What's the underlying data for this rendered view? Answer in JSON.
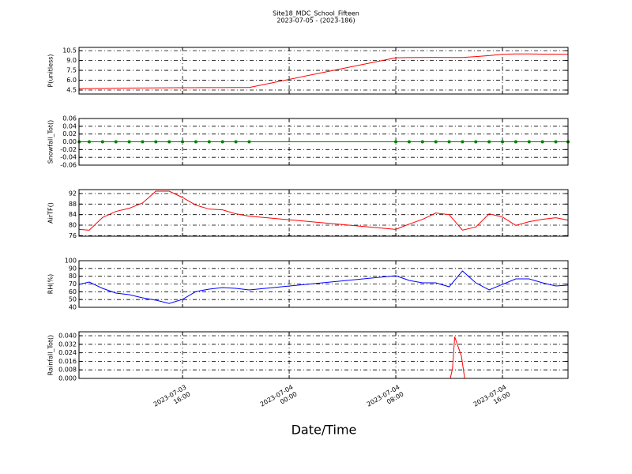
{
  "figure": {
    "title": "Site18_MDC_School_Fifteen",
    "subtitle": "2023-07-05 - (2023-186)",
    "xlabel": "Date/Time"
  },
  "chart_data": [
    {
      "type": "line",
      "ylabel": "P(unitless)",
      "color": "#ff0000",
      "grid": true,
      "x": [
        "2023-07-03 08:15",
        "2023-07-03 09:00",
        "2023-07-03 10:00",
        "2023-07-03 11:00",
        "2023-07-03 12:00",
        "2023-07-03 13:00",
        "2023-07-03 14:00",
        "2023-07-03 15:00",
        "2023-07-03 16:00",
        "2023-07-03 17:00",
        "2023-07-03 18:00",
        "2023-07-03 19:00",
        "2023-07-03 20:00",
        "2023-07-03 21:00",
        "2023-07-04 08:00",
        "2023-07-04 09:00",
        "2023-07-04 10:00",
        "2023-07-04 11:00",
        "2023-07-04 12:00",
        "2023-07-04 13:00",
        "2023-07-04 14:00",
        "2023-07-04 15:00",
        "2023-07-04 16:00",
        "2023-07-04 17:00",
        "2023-07-04 18:00",
        "2023-07-04 19:00",
        "2023-07-04 20:00",
        "2023-07-04 20:55"
      ],
      "values": [
        4.72,
        4.73,
        4.75,
        4.77,
        4.8,
        4.82,
        4.84,
        4.85,
        4.86,
        4.87,
        4.88,
        4.88,
        4.89,
        4.9,
        9.42,
        9.45,
        9.47,
        9.48,
        9.47,
        9.46,
        9.6,
        9.75,
        9.95,
        10.0,
        10.0,
        9.98,
        9.97,
        9.95
      ],
      "xlim": [
        "2023-07-03 08:14",
        "2023-07-04 20:55"
      ],
      "xticks": [
        "2023-07-03 16:00",
        "2023-07-04 00:00",
        "2023-07-04 08:00",
        "2023-07-04 16:00"
      ],
      "ylim": [
        3.9,
        11.0
      ],
      "yticks": [
        4.5,
        {
          "value": 6,
          "label": "6.0"
        },
        7.5,
        {
          "value": 9,
          "label": "9.0"
        },
        10.5
      ]
    },
    {
      "type": "line",
      "ylabel": "Snowfall_Tot()",
      "color": "#008000",
      "marker": "o",
      "grid": true,
      "x": [
        "2023-07-03 08:15",
        "2023-07-03 09:00",
        "2023-07-03 10:00",
        "2023-07-03 11:00",
        "2023-07-03 12:00",
        "2023-07-03 13:00",
        "2023-07-03 14:00",
        "2023-07-03 15:00",
        "2023-07-03 16:00",
        "2023-07-03 17:00",
        "2023-07-03 18:00",
        "2023-07-03 19:00",
        "2023-07-03 20:00",
        "2023-07-03 21:00",
        "2023-07-04 08:00",
        "2023-07-04 09:00",
        "2023-07-04 10:00",
        "2023-07-04 11:00",
        "2023-07-04 12:00",
        "2023-07-04 13:00",
        "2023-07-04 14:00",
        "2023-07-04 15:00",
        "2023-07-04 16:00",
        "2023-07-04 17:00",
        "2023-07-04 18:00",
        "2023-07-04 19:00",
        "2023-07-04 20:00",
        "2023-07-04 20:55"
      ],
      "values": [
        0,
        0,
        0,
        0,
        0,
        0,
        0,
        0,
        0,
        0,
        0,
        0,
        0,
        0,
        0,
        0,
        0,
        0,
        0,
        0,
        0,
        0,
        0,
        0,
        0,
        0,
        0,
        0
      ],
      "xlim": [
        "2023-07-03 08:14",
        "2023-07-04 20:55"
      ],
      "xticks": [
        "2023-07-03 16:00",
        "2023-07-04 00:00",
        "2023-07-04 08:00",
        "2023-07-04 16:00"
      ],
      "ylim": [
        -0.06,
        0.06
      ],
      "yticks": [
        -0.06,
        -0.04,
        -0.02,
        {
          "value": 0,
          "label": "0.00"
        },
        0.02,
        0.04,
        0.06
      ]
    },
    {
      "type": "line",
      "ylabel": "AirTF()",
      "color": "#ff0000",
      "grid": true,
      "x": [
        "2023-07-03 08:15",
        "2023-07-03 09:00",
        "2023-07-03 10:00",
        "2023-07-03 11:00",
        "2023-07-03 12:00",
        "2023-07-03 13:00",
        "2023-07-03 14:00",
        "2023-07-03 15:00",
        "2023-07-03 16:00",
        "2023-07-03 17:00",
        "2023-07-03 18:00",
        "2023-07-03 19:00",
        "2023-07-03 20:00",
        "2023-07-03 21:00",
        "2023-07-04 08:00",
        "2023-07-04 09:00",
        "2023-07-04 10:00",
        "2023-07-04 11:00",
        "2023-07-04 12:00",
        "2023-07-04 13:00",
        "2023-07-04 14:00",
        "2023-07-04 15:00",
        "2023-07-04 16:00",
        "2023-07-04 17:00",
        "2023-07-04 18:00",
        "2023-07-04 19:00",
        "2023-07-04 20:00",
        "2023-07-04 20:55"
      ],
      "values": [
        78.4,
        78.1,
        82.9,
        85.2,
        86.4,
        88.4,
        92.9,
        92.9,
        90.5,
        87.6,
        86.1,
        85.8,
        84.3,
        83.4,
        78.4,
        80.4,
        82.2,
        84.6,
        84.0,
        78.1,
        79.3,
        84.3,
        83.1,
        79.9,
        81.3,
        82.2,
        82.8,
        81.9
      ],
      "xlim": [
        "2023-07-03 08:14",
        "2023-07-04 20:55"
      ],
      "xticks": [
        "2023-07-03 16:00",
        "2023-07-04 00:00",
        "2023-07-04 08:00",
        "2023-07-04 16:00"
      ],
      "ylim": [
        75.8,
        93.5
      ],
      "yticks": [
        76,
        80,
        84,
        88,
        92
      ]
    },
    {
      "type": "line",
      "ylabel": "RH(%)",
      "color": "#0000ff",
      "grid": true,
      "x": [
        "2023-07-03 08:15",
        "2023-07-03 09:00",
        "2023-07-03 10:00",
        "2023-07-03 11:00",
        "2023-07-03 12:00",
        "2023-07-03 13:00",
        "2023-07-03 14:00",
        "2023-07-03 15:00",
        "2023-07-03 16:00",
        "2023-07-03 17:00",
        "2023-07-03 18:00",
        "2023-07-03 19:00",
        "2023-07-03 20:00",
        "2023-07-03 21:00",
        "2023-07-04 08:00",
        "2023-07-04 09:00",
        "2023-07-04 10:00",
        "2023-07-04 11:00",
        "2023-07-04 12:00",
        "2023-07-04 13:00",
        "2023-07-04 14:00",
        "2023-07-04 15:00",
        "2023-07-04 16:00",
        "2023-07-04 17:00",
        "2023-07-04 18:00",
        "2023-07-04 19:00",
        "2023-07-04 20:00",
        "2023-07-04 20:55"
      ],
      "values": [
        69.5,
        72.5,
        64.4,
        58.3,
        56.3,
        52.2,
        49.2,
        45,
        50.2,
        60.3,
        63.4,
        65.4,
        64.4,
        62.4,
        80.7,
        74.6,
        71.5,
        71.5,
        66.4,
        86.8,
        71.5,
        62.4,
        69.5,
        76.6,
        76.6,
        71.5,
        67.5,
        68.5
      ],
      "xlim": [
        "2023-07-03 08:14",
        "2023-07-04 20:55"
      ],
      "xticks": [
        "2023-07-03 16:00",
        "2023-07-04 00:00",
        "2023-07-04 08:00",
        "2023-07-04 16:00"
      ],
      "ylim": [
        40,
        100
      ],
      "yticks": [
        40,
        50,
        60,
        70,
        80,
        90,
        100
      ]
    },
    {
      "type": "line",
      "ylabel": "Rainfall_Tot()",
      "color": "#ff0000",
      "grid": true,
      "x": [
        "2023-07-03 08:15",
        "2023-07-04 12:05",
        "2023-07-04 12:15",
        "2023-07-04 12:25",
        "2023-07-04 12:55",
        "2023-07-04 13:10"
      ],
      "values": [
        0,
        0,
        0.009,
        0.039,
        0.021,
        0
      ],
      "xlim": [
        "2023-07-03 08:14",
        "2023-07-04 20:55"
      ],
      "xticks": [
        "2023-07-03 16:00",
        "2023-07-04 00:00",
        "2023-07-04 08:00",
        "2023-07-04 16:00"
      ],
      "show_xticklabels": true,
      "ylim": [
        0,
        0.0437
      ],
      "yticks": [
        {
          "value": 0,
          "label": "0.000"
        },
        0.008,
        0.016,
        0.024,
        0.032,
        {
          "value": 0.04,
          "label": "0.040"
        }
      ]
    }
  ]
}
